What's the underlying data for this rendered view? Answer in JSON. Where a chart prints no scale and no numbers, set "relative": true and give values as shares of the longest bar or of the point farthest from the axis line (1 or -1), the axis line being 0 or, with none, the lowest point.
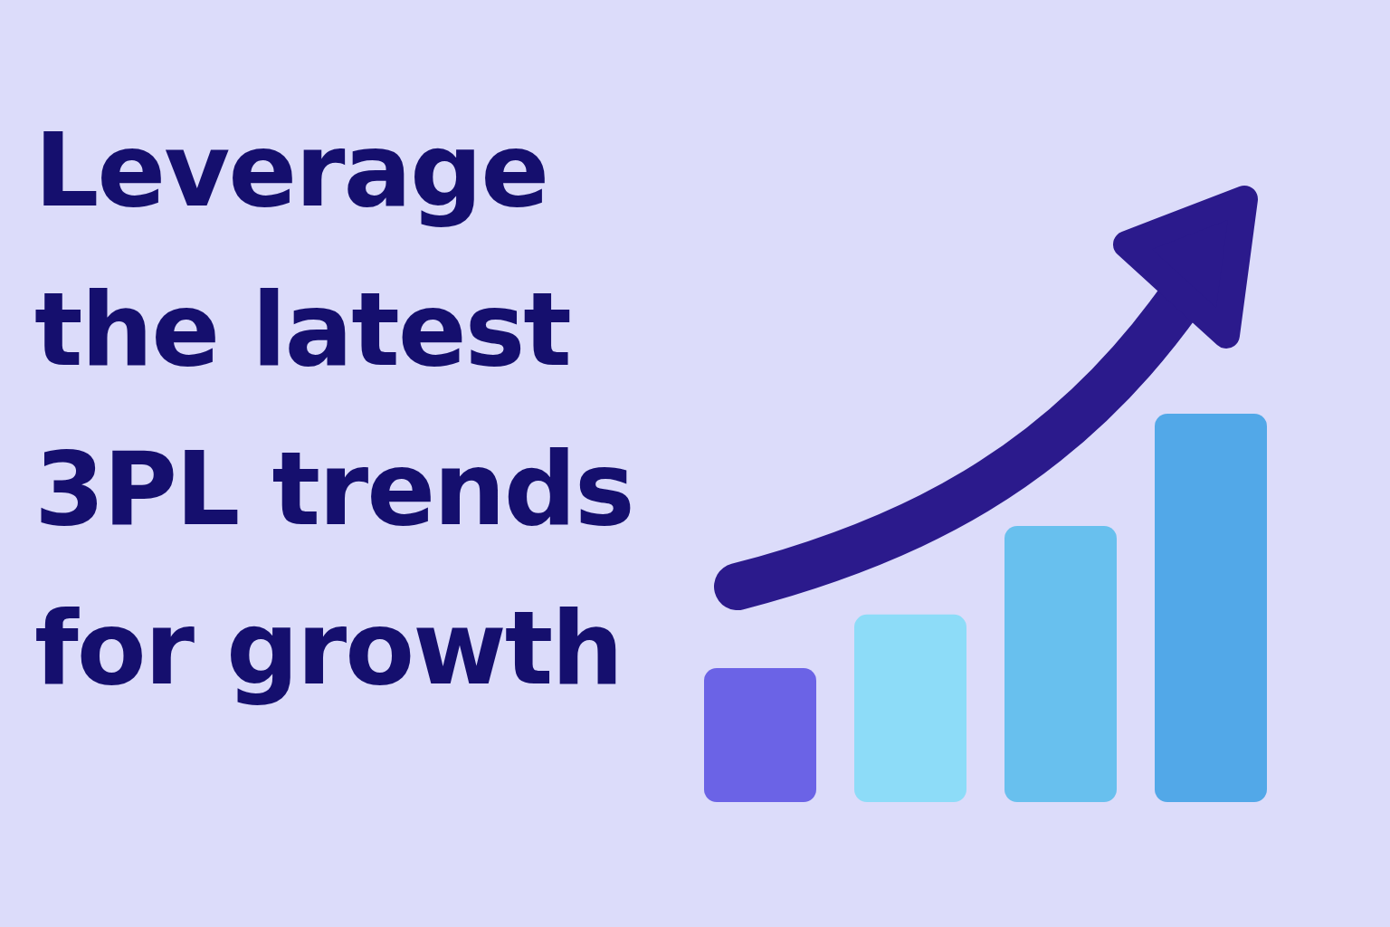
{
  "chart_data": {
    "type": "bar",
    "title": "Leverage the latest 3PL trends for growth",
    "relative": true,
    "categories": [
      null,
      null,
      null,
      null
    ],
    "values": [
      0.345,
      0.483,
      0.711,
      1
    ],
    "colors": [
      "#6b63e6",
      "#8ddcf8",
      "#68c0ee",
      "#52a8e8"
    ]
  }
}
